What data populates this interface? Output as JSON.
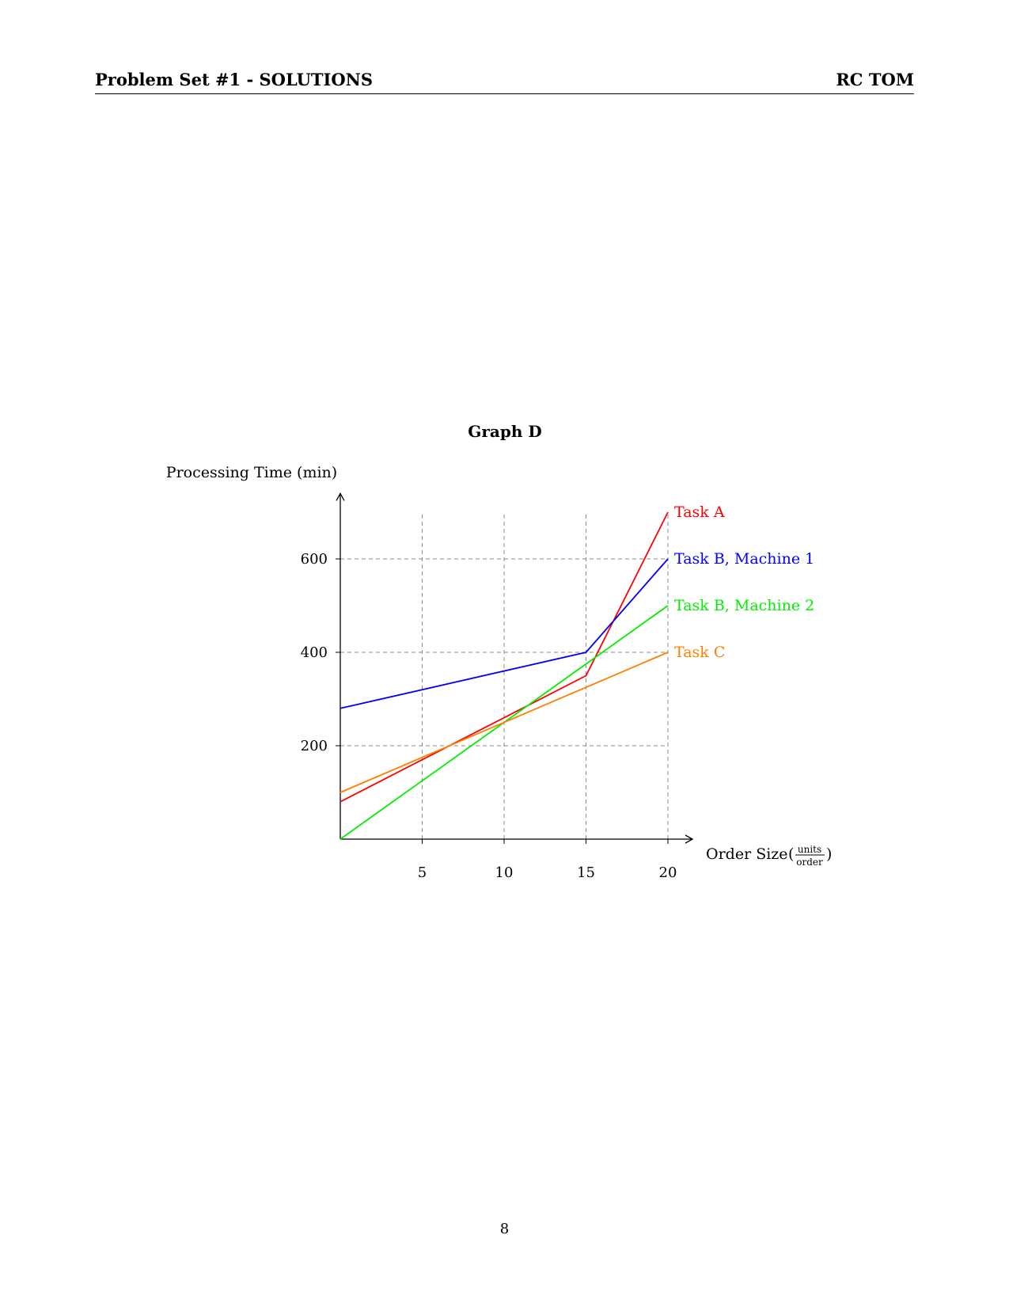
{
  "header": {
    "left": "Problem Set #1 - SOLUTIONS",
    "right": "RC TOM"
  },
  "page_number": "8",
  "chart_data": {
    "type": "line",
    "title": "Graph D",
    "ylabel": "Processing Time (min)",
    "xlabel": "Order Size",
    "xlabel_unit_num": "units",
    "xlabel_unit_den": "order",
    "xlim": [
      0,
      21.5
    ],
    "ylim": [
      0,
      740
    ],
    "x_ticks": [
      5,
      10,
      15,
      20
    ],
    "y_ticks": [
      200,
      400,
      600
    ],
    "grid": true,
    "series": [
      {
        "name": "Task A",
        "color": "#ff0000",
        "x": [
          0,
          15,
          20
        ],
        "y": [
          80,
          350,
          700
        ]
      },
      {
        "name": "Task B, Machine 1",
        "color": "#0000ff",
        "x": [
          0,
          15,
          20
        ],
        "y": [
          280,
          400,
          600
        ]
      },
      {
        "name": "Task B, Machine 2",
        "color": "#00ee00",
        "x": [
          0,
          20
        ],
        "y": [
          0,
          500
        ]
      },
      {
        "name": "Task C",
        "color": "#ff7f00",
        "x": [
          0,
          20
        ],
        "y": [
          100,
          400
        ]
      }
    ]
  }
}
